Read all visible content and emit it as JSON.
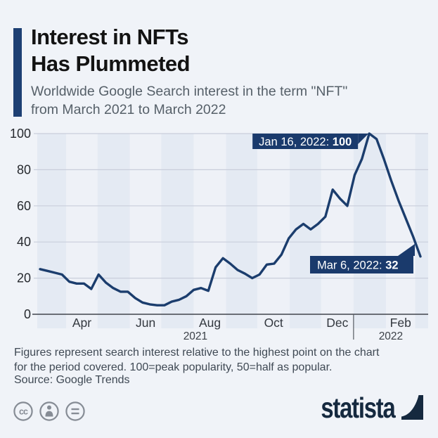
{
  "header": {
    "title": "Interest in NFTs\nHas Plummeted",
    "subtitle": "Worldwide Google Search interest in the term \"NFT\"\nfrom March 2021 to March 2022"
  },
  "chart_data": {
    "type": "line",
    "title": "Worldwide Google Search interest in the term \"NFT\" from March 2021 to March 2022",
    "x": [
      "2021-03-07",
      "2021-03-14",
      "2021-03-21",
      "2021-03-28",
      "2021-04-04",
      "2021-04-11",
      "2021-04-18",
      "2021-04-25",
      "2021-05-02",
      "2021-05-09",
      "2021-05-16",
      "2021-05-23",
      "2021-05-30",
      "2021-06-06",
      "2021-06-13",
      "2021-06-20",
      "2021-06-27",
      "2021-07-04",
      "2021-07-11",
      "2021-07-18",
      "2021-07-25",
      "2021-08-01",
      "2021-08-08",
      "2021-08-15",
      "2021-08-22",
      "2021-08-29",
      "2021-09-05",
      "2021-09-12",
      "2021-09-19",
      "2021-09-26",
      "2021-10-03",
      "2021-10-10",
      "2021-10-17",
      "2021-10-24",
      "2021-10-31",
      "2021-11-07",
      "2021-11-14",
      "2021-11-21",
      "2021-11-28",
      "2021-12-05",
      "2021-12-12",
      "2021-12-19",
      "2021-12-26",
      "2022-01-02",
      "2022-01-09",
      "2022-01-16",
      "2022-01-23",
      "2022-01-30",
      "2022-02-06",
      "2022-02-13",
      "2022-02-20",
      "2022-02-27",
      "2022-03-06"
    ],
    "values": [
      25,
      24,
      23,
      22,
      18,
      17,
      17,
      14,
      22,
      17.5,
      14.5,
      12.5,
      12.5,
      9,
      6.5,
      5.5,
      5,
      5,
      7,
      8,
      10,
      13.5,
      14.5,
      13,
      26,
      31,
      28,
      24.5,
      22.5,
      20,
      22,
      27.5,
      28,
      33,
      42,
      47,
      50,
      47,
      50,
      54,
      69,
      64,
      60,
      77,
      86,
      100,
      97,
      86,
      74,
      63,
      53,
      43,
      32
    ],
    "ylim": [
      0,
      100
    ],
    "yticks": [
      "0",
      "20",
      "40",
      "60",
      "80",
      "100"
    ],
    "xtick_months": [
      "Apr",
      "Jun",
      "Aug",
      "Oct",
      "Dec",
      "Feb"
    ],
    "year_labels": [
      "2021",
      "2022"
    ],
    "grid": "horizontal",
    "legend": "none",
    "annotations": [
      {
        "label": "Jan 16, 2022: ",
        "value": "100",
        "anchor_date": "2022-01-16",
        "anchor_value": 100
      },
      {
        "label": "Mar 6, 2022: ",
        "value": "32",
        "anchor_date": "2022-03-06",
        "anchor_value": 32
      }
    ]
  },
  "footer": {
    "note": "Figures represent search interest relative to the highest point on the chart\nfor the period covered. 100=peak popularity, 50=half as popular.",
    "source": "Source: Google Trends"
  },
  "branding": {
    "logo_text": "statista",
    "license_icons": [
      "cc-icon",
      "attribution-icon",
      "equals-icon"
    ]
  },
  "colors": {
    "background": "#f0f3f8",
    "band_dark": "#e4eaf3",
    "band_light": "#eef1f7",
    "gridline": "#c9cedb",
    "axis": "#41454d",
    "line": "#1b3d6d",
    "annotation_bg": "#1a3a6c",
    "annotation_text": "#ffffff",
    "accent_bar": "#1d3f73",
    "logo_navy": "#15293f",
    "icon_gray": "#868c95"
  }
}
